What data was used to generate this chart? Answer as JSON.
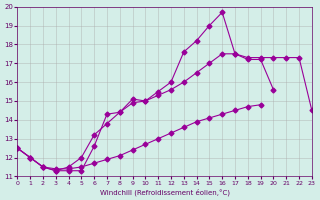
{
  "xlabel": "Windchill (Refroidissement éolien,°C)",
  "ylabel": "",
  "xlim": [
    0,
    23
  ],
  "ylim": [
    11,
    20
  ],
  "xticks": [
    0,
    1,
    2,
    3,
    4,
    5,
    6,
    7,
    8,
    9,
    10,
    11,
    12,
    13,
    14,
    15,
    16,
    17,
    18,
    19,
    20,
    21,
    22,
    23
  ],
  "yticks": [
    11,
    12,
    13,
    14,
    15,
    16,
    17,
    18,
    19,
    20
  ],
  "background_color": "#d4eee8",
  "line_color": "#990099",
  "grid_color": "#aaaaaa",
  "curve1_x": [
    0,
    1,
    2,
    3,
    4,
    5,
    6,
    7,
    8,
    9,
    10,
    11,
    12,
    13,
    14,
    15,
    16,
    17,
    18,
    19,
    20
  ],
  "curve1_y": [
    12.5,
    12.0,
    11.5,
    11.3,
    11.3,
    11.3,
    12.6,
    14.3,
    14.4,
    15.1,
    15.0,
    15.5,
    16.0,
    17.6,
    18.2,
    19.0,
    19.7,
    17.5,
    17.2,
    17.2,
    15.6
  ],
  "curve2_x": [
    0,
    1,
    2,
    3,
    4,
    5,
    6,
    7,
    8,
    9,
    10,
    11,
    12,
    13,
    14,
    15,
    16,
    17,
    18,
    19,
    20,
    21,
    22,
    23
  ],
  "curve2_y": [
    12.5,
    12.0,
    11.5,
    11.3,
    11.5,
    12.0,
    13.2,
    13.8,
    14.4,
    14.9,
    15.0,
    15.3,
    15.6,
    16.0,
    16.5,
    17.0,
    17.5,
    17.5,
    17.3,
    17.3,
    17.3,
    17.3,
    17.3,
    14.5
  ],
  "curve3_x": [
    0,
    1,
    2,
    3,
    4,
    5,
    6,
    7,
    8,
    9,
    10,
    11,
    12,
    13,
    14,
    15,
    16,
    17,
    18,
    19
  ],
  "curve3_y": [
    12.5,
    12.0,
    11.5,
    11.4,
    11.4,
    11.5,
    11.7,
    11.9,
    12.1,
    12.4,
    12.7,
    13.0,
    13.3,
    13.6,
    13.9,
    14.1,
    14.3,
    14.5,
    14.7,
    14.8
  ]
}
